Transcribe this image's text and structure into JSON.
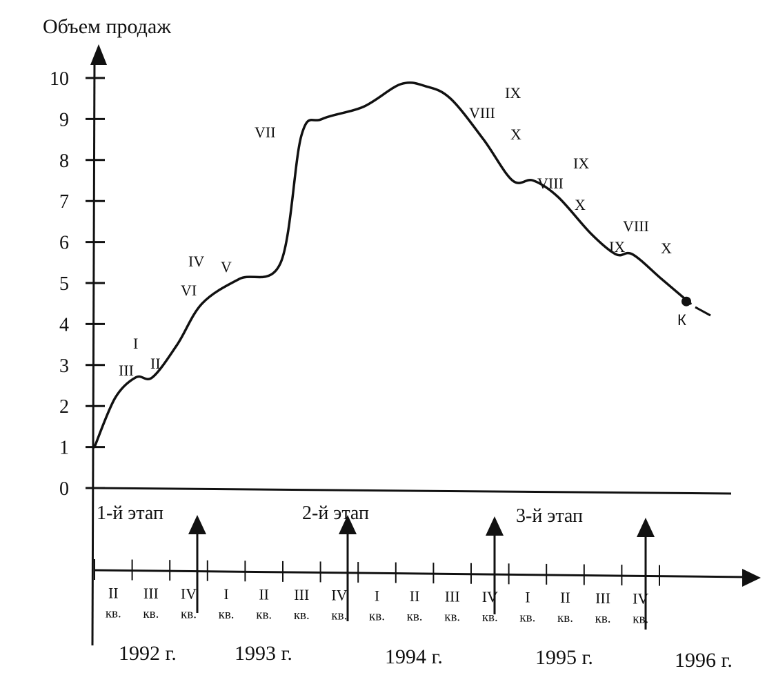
{
  "colors": {
    "ink": "#111111",
    "background": "#ffffff"
  },
  "chart_data": {
    "type": "line",
    "ylabel": "Объем продаж",
    "ylim": [
      0,
      10
    ],
    "y_ticks": [
      "0",
      "1",
      "2",
      "3",
      "4",
      "5",
      "6",
      "7",
      "8",
      "9",
      "10"
    ],
    "quarters": [
      "II",
      "III",
      "IV",
      "I",
      "II",
      "III",
      "IV",
      "I",
      "II",
      "III",
      "IV",
      "I",
      "II",
      "III",
      "IV"
    ],
    "quarter_suffix": "кв.",
    "years": [
      "1992 г.",
      "1993 г.",
      "1994 г.",
      "1995 г.",
      "1996 г."
    ],
    "stages": [
      "1-й этап",
      "2-й этап",
      "3-й этап"
    ],
    "series": [
      {
        "x": [
          0,
          0.5,
          1.0,
          1.4,
          2.0,
          2.6,
          3.5,
          4.5,
          5.0,
          5.5,
          6.5,
          7.4,
          8.0,
          8.6,
          9.4,
          10.1,
          10.6,
          11.2,
          12.0,
          12.6,
          13.0,
          13.7,
          14.4
        ],
        "y": [
          1.0,
          2.2,
          2.7,
          2.7,
          3.5,
          4.5,
          5.1,
          5.5,
          8.6,
          9.0,
          9.3,
          9.85,
          9.8,
          9.5,
          8.5,
          7.5,
          7.5,
          7.1,
          6.2,
          5.7,
          5.7,
          5.1,
          4.5
        ]
      }
    ],
    "marker": {
      "x": 14.3,
      "y": 4.55,
      "label": "К"
    },
    "annotations": [
      "I",
      "III",
      "II",
      "IV",
      "V",
      "VI",
      "VII",
      "VIII",
      "IX",
      "X",
      "VIII",
      "IX",
      "X",
      "VIII",
      "IX",
      "X"
    ]
  }
}
